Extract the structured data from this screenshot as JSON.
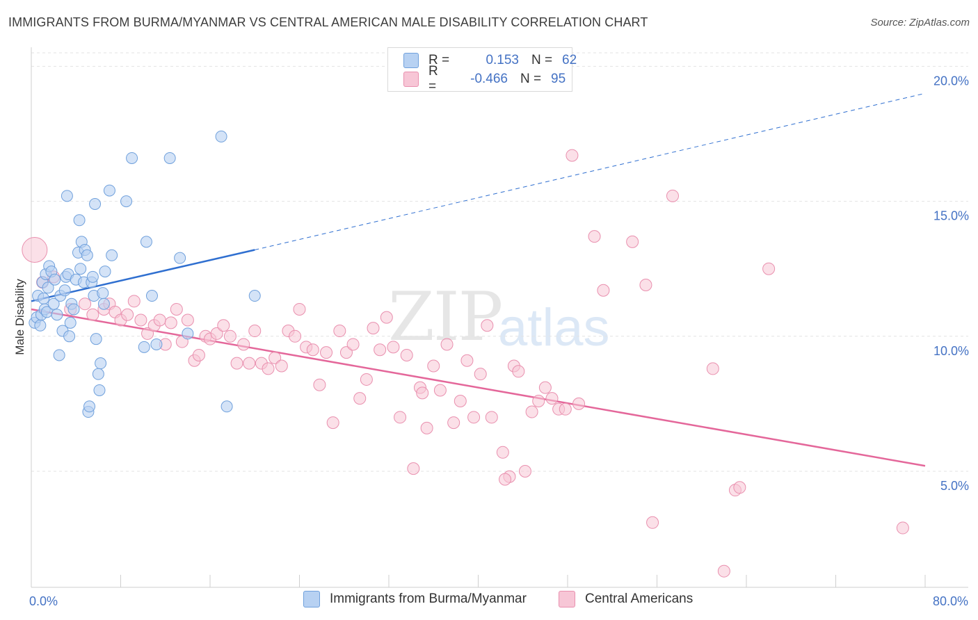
{
  "title": "IMMIGRANTS FROM BURMA/MYANMAR VS CENTRAL AMERICAN MALE DISABILITY CORRELATION CHART",
  "source": "Source: ZipAtlas.com",
  "watermark": {
    "part1": "ZIP",
    "part2": "atlas"
  },
  "legend": {
    "rows": [
      {
        "r_label": "R =",
        "r_value": "0.153",
        "n_label": "N =",
        "n_value": "62"
      },
      {
        "r_label": "R =",
        "r_value": "-0.466",
        "n_label": "N =",
        "n_value": "95"
      }
    ]
  },
  "colors": {
    "blue_fill": "#b7d1f2",
    "blue_stroke": "#6fa0dc",
    "blue_line": "#2f6fd0",
    "pink_fill": "#f7c6d6",
    "pink_stroke": "#e98fae",
    "pink_line": "#e4679a",
    "grid": "#e3e3e3",
    "axis_text": "#4472c4"
  },
  "chart_data": {
    "type": "scatter",
    "ylabel": "Male Disability",
    "xlim": [
      0,
      80
    ],
    "ylim": [
      0.7,
      20.5
    ],
    "x_ticks": [
      0,
      8,
      16,
      24,
      32,
      40,
      48,
      56,
      64,
      72,
      80
    ],
    "x_tick_labels": [
      {
        "value": 0,
        "label": "0.0%"
      },
      {
        "value": 80,
        "label": "80.0%"
      }
    ],
    "y_ticks": [
      {
        "value": 5,
        "label": "5.0%"
      },
      {
        "value": 10,
        "label": "10.0%"
      },
      {
        "value": 15,
        "label": "15.0%"
      },
      {
        "value": 20,
        "label": "20.0%"
      }
    ],
    "grid": "horizontal dashed",
    "series": [
      {
        "name": "Immigrants from Burma/Myanmar",
        "color": "#6fa0dc",
        "trend": {
          "x0": 0,
          "y0": 11.3,
          "x1": 20,
          "y1": 13.2,
          "dashed_to_x": 80,
          "dashed_to_y": 19.0
        },
        "points": [
          [
            0.3,
            10.5
          ],
          [
            0.5,
            10.7
          ],
          [
            0.6,
            11.5
          ],
          [
            0.8,
            10.4
          ],
          [
            0.9,
            10.8
          ],
          [
            1.0,
            12.0
          ],
          [
            1.1,
            11.4
          ],
          [
            1.2,
            11.0
          ],
          [
            1.3,
            12.3
          ],
          [
            1.4,
            10.9
          ],
          [
            1.5,
            11.8
          ],
          [
            1.6,
            12.6
          ],
          [
            1.8,
            12.4
          ],
          [
            2.0,
            11.2
          ],
          [
            2.1,
            12.1
          ],
          [
            2.3,
            10.8
          ],
          [
            2.5,
            9.3
          ],
          [
            2.6,
            11.5
          ],
          [
            2.8,
            10.2
          ],
          [
            3.0,
            11.7
          ],
          [
            3.1,
            12.2
          ],
          [
            3.2,
            15.2
          ],
          [
            3.3,
            12.3
          ],
          [
            3.4,
            10.0
          ],
          [
            3.5,
            10.5
          ],
          [
            3.6,
            11.2
          ],
          [
            3.8,
            11.0
          ],
          [
            4.0,
            12.1
          ],
          [
            4.2,
            13.1
          ],
          [
            4.3,
            14.3
          ],
          [
            4.4,
            12.5
          ],
          [
            4.5,
            13.5
          ],
          [
            4.7,
            12.0
          ],
          [
            4.8,
            13.2
          ],
          [
            5.0,
            13.0
          ],
          [
            5.1,
            7.2
          ],
          [
            5.2,
            7.4
          ],
          [
            5.4,
            12.0
          ],
          [
            5.5,
            12.2
          ],
          [
            5.6,
            11.5
          ],
          [
            5.7,
            14.9
          ],
          [
            5.8,
            9.9
          ],
          [
            6.0,
            8.6
          ],
          [
            6.1,
            8.0
          ],
          [
            6.2,
            9.0
          ],
          [
            6.4,
            11.6
          ],
          [
            6.5,
            11.2
          ],
          [
            6.6,
            12.4
          ],
          [
            7.0,
            15.4
          ],
          [
            7.2,
            13.0
          ],
          [
            8.5,
            15.0
          ],
          [
            9.0,
            16.6
          ],
          [
            10.1,
            9.6
          ],
          [
            10.3,
            13.5
          ],
          [
            10.8,
            11.5
          ],
          [
            11.2,
            9.7
          ],
          [
            12.4,
            16.6
          ],
          [
            13.3,
            12.9
          ],
          [
            14.0,
            10.1
          ],
          [
            17.0,
            17.4
          ],
          [
            20.0,
            11.5
          ],
          [
            17.5,
            7.4
          ]
        ]
      },
      {
        "name": "Central Americans",
        "color": "#e98fae",
        "trend": {
          "x0": 0,
          "y0": 11.0,
          "x1": 80,
          "y1": 5.2
        },
        "points": [
          [
            0.3,
            13.2
          ],
          [
            1.0,
            12.0
          ],
          [
            2.0,
            12.2
          ],
          [
            3.5,
            11.0
          ],
          [
            4.8,
            11.2
          ],
          [
            5.5,
            10.8
          ],
          [
            6.5,
            11.0
          ],
          [
            7.0,
            11.2
          ],
          [
            7.5,
            10.9
          ],
          [
            8.0,
            10.6
          ],
          [
            8.6,
            10.8
          ],
          [
            9.2,
            11.3
          ],
          [
            9.8,
            10.6
          ],
          [
            10.4,
            10.1
          ],
          [
            11.0,
            10.4
          ],
          [
            11.5,
            10.6
          ],
          [
            12.0,
            9.7
          ],
          [
            12.5,
            10.5
          ],
          [
            13.0,
            11.0
          ],
          [
            13.5,
            9.8
          ],
          [
            14.0,
            10.6
          ],
          [
            14.6,
            9.1
          ],
          [
            15.0,
            9.3
          ],
          [
            15.6,
            10.0
          ],
          [
            16.0,
            9.9
          ],
          [
            16.6,
            10.1
          ],
          [
            17.2,
            10.4
          ],
          [
            17.8,
            10.0
          ],
          [
            18.4,
            9.0
          ],
          [
            19.0,
            9.7
          ],
          [
            19.5,
            9.0
          ],
          [
            20.0,
            10.2
          ],
          [
            20.6,
            9.0
          ],
          [
            21.2,
            8.8
          ],
          [
            21.8,
            9.2
          ],
          [
            22.4,
            8.9
          ],
          [
            23.0,
            10.2
          ],
          [
            23.6,
            10.0
          ],
          [
            24.0,
            11.0
          ],
          [
            24.6,
            9.6
          ],
          [
            25.2,
            9.5
          ],
          [
            25.8,
            8.2
          ],
          [
            26.4,
            9.4
          ],
          [
            27.0,
            6.8
          ],
          [
            27.6,
            10.2
          ],
          [
            28.2,
            9.4
          ],
          [
            28.8,
            9.7
          ],
          [
            29.4,
            7.7
          ],
          [
            30.0,
            8.4
          ],
          [
            30.6,
            10.3
          ],
          [
            31.2,
            9.5
          ],
          [
            31.8,
            10.7
          ],
          [
            32.4,
            9.6
          ],
          [
            33.0,
            7.0
          ],
          [
            33.6,
            9.3
          ],
          [
            34.2,
            5.1
          ],
          [
            34.8,
            8.1
          ],
          [
            35.4,
            6.6
          ],
          [
            36.0,
            8.9
          ],
          [
            36.6,
            8.0
          ],
          [
            37.2,
            9.7
          ],
          [
            37.8,
            6.8
          ],
          [
            38.4,
            7.6
          ],
          [
            39.0,
            9.1
          ],
          [
            39.6,
            7.0
          ],
          [
            40.2,
            8.6
          ],
          [
            40.8,
            10.4
          ],
          [
            41.2,
            7.0
          ],
          [
            42.2,
            5.7
          ],
          [
            42.8,
            4.8
          ],
          [
            43.2,
            8.9
          ],
          [
            43.6,
            8.7
          ],
          [
            44.2,
            5.0
          ],
          [
            44.8,
            7.2
          ],
          [
            45.4,
            7.6
          ],
          [
            46.0,
            8.1
          ],
          [
            46.6,
            7.7
          ],
          [
            47.2,
            7.3
          ],
          [
            47.8,
            7.3
          ],
          [
            48.4,
            16.7
          ],
          [
            49.0,
            7.5
          ],
          [
            50.4,
            13.7
          ],
          [
            51.2,
            11.7
          ],
          [
            53.8,
            13.5
          ],
          [
            55.0,
            11.9
          ],
          [
            55.6,
            3.1
          ],
          [
            57.4,
            15.2
          ],
          [
            61.0,
            8.8
          ],
          [
            62.0,
            1.3
          ],
          [
            63.0,
            4.3
          ],
          [
            63.4,
            4.4
          ],
          [
            66.0,
            12.5
          ],
          [
            78.0,
            2.9
          ],
          [
            42.4,
            4.7
          ],
          [
            35.0,
            7.9
          ]
        ]
      }
    ]
  }
}
